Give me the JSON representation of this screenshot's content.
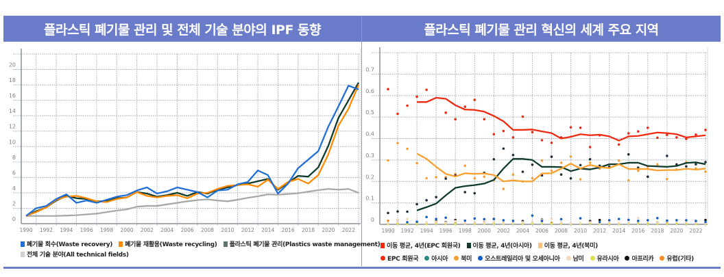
{
  "colors": {
    "header": "#6a7bc9"
  },
  "chart_data": [
    {
      "type": "line",
      "title": "플라스틱 폐기물 관리 및 전체 기술 분야의 IPF 동향",
      "x": [
        1990,
        1991,
        1992,
        1993,
        1994,
        1995,
        1996,
        1997,
        1998,
        1999,
        2000,
        2001,
        2002,
        2003,
        2004,
        2005,
        2006,
        2007,
        2008,
        2009,
        2010,
        2011,
        2012,
        2013,
        2014,
        2015,
        2016,
        2017,
        2018,
        2019,
        2020,
        2021,
        2022,
        2023
      ],
      "xticks": [
        "1990",
        "1992",
        "1994",
        "1996",
        "1998",
        "2000",
        "2002",
        "2004",
        "2006",
        "2008",
        "2010",
        "2012",
        "2014",
        "2016",
        "2018",
        "2020",
        "2022"
      ],
      "yticks": [
        "0",
        "2",
        "4",
        "6",
        "8",
        "10",
        "12",
        "14",
        "16",
        "18",
        "20"
      ],
      "ylim": [
        0,
        22
      ],
      "grid": true,
      "legend_position": "bottom",
      "series": [
        {
          "name": "폐기물 회수(Waste recovery)",
          "color": "#1f6fd6",
          "values": [
            1,
            2,
            2.3,
            3.2,
            3.8,
            2.7,
            3,
            2.7,
            3.1,
            3.5,
            3.7,
            4.3,
            4.7,
            3.9,
            4.2,
            4.7,
            4.4,
            4.1,
            3.4,
            4.3,
            4.4,
            5.1,
            5.4,
            6.9,
            6.3,
            3.9,
            5.2,
            7.2,
            8.3,
            9.4,
            12.6,
            15.2,
            17.9,
            17.4
          ]
        },
        {
          "name": "폐기물 재활용(Waste recycling)",
          "color": "#ff8a00",
          "values": [
            1,
            1.5,
            2.1,
            3.1,
            3.5,
            3.6,
            3.3,
            2.9,
            2.8,
            3.2,
            3.4,
            4.1,
            3.6,
            3.4,
            3.6,
            3.7,
            3.3,
            3.9,
            4,
            4.5,
            4.9,
            5,
            5.1,
            4.8,
            5.7,
            4.5,
            5.4,
            5.8,
            5.2,
            6.3,
            9,
            12.7,
            14.9,
            18
          ]
        },
        {
          "name": "플라스틱 폐기물 관리(Plastics waste management)",
          "color": "#0e3a2c",
          "values": [
            1,
            1.6,
            2.1,
            3,
            3.6,
            3.3,
            3.2,
            2.9,
            2.9,
            3.3,
            3.4,
            4.1,
            3.9,
            3.5,
            3.7,
            4,
            3.6,
            4.1,
            3.9,
            4.4,
            4.7,
            5,
            5.2,
            5.5,
            5.8,
            4.4,
            5.3,
            6.2,
            6.1,
            7.3,
            10.1,
            13.7,
            16,
            18.3
          ]
        },
        {
          "name": "전체 기술 분야(All technical fields)",
          "color": "#a8a8a8",
          "values": [
            1,
            1,
            1,
            1,
            1.05,
            1.1,
            1.2,
            1.3,
            1.5,
            1.7,
            1.85,
            2.2,
            2.3,
            2.3,
            2.5,
            2.7,
            2.9,
            3.05,
            3.15,
            3,
            2.9,
            3.1,
            3.35,
            3.55,
            3.8,
            3.75,
            3.85,
            3.95,
            4.15,
            4.35,
            4.5,
            4.4,
            4.5,
            4
          ]
        }
      ]
    },
    {
      "type": "line",
      "title": "플라스틱 폐기물 관리 혁신의 세계 주요 지역",
      "x": [
        1990,
        1991,
        1992,
        1993,
        1994,
        1995,
        1996,
        1997,
        1998,
        1999,
        2000,
        2001,
        2002,
        2003,
        2004,
        2005,
        2006,
        2007,
        2008,
        2009,
        2010,
        2011,
        2012,
        2013,
        2014,
        2015,
        2016,
        2017,
        2018,
        2019,
        2020,
        2021,
        2022,
        2023
      ],
      "xticks": [
        "1990",
        "1992",
        "1994",
        "1996",
        "1998",
        "2000",
        "2002",
        "2004",
        "2006",
        "2008",
        "2010",
        "2012",
        "2014",
        "2016",
        "2018",
        "2020",
        "2022"
      ],
      "yticks": [
        "0",
        "0.1",
        "0.2",
        "0.3",
        "0.4",
        "0.5",
        "0.6",
        "0.7"
      ],
      "ylim": [
        0,
        0.8
      ],
      "grid": true,
      "legend_position": "bottom",
      "moving_averages": [
        {
          "name": "이동 평균, 4년(EPC 회원국)",
          "color": "#f02a10",
          "start": 1993,
          "values": [
            0.57,
            0.57,
            0.59,
            0.585,
            0.555,
            0.535,
            0.533,
            0.525,
            0.505,
            0.48,
            0.44,
            0.44,
            0.442,
            0.433,
            0.425,
            0.4,
            0.408,
            0.42,
            0.415,
            0.418,
            0.41,
            0.39,
            0.41,
            0.412,
            0.42,
            0.428,
            0.425,
            0.42,
            0.405,
            0.41,
            0.415
          ]
        },
        {
          "name": "이동 평균, 4년(아시아)",
          "color": "#0e3a2c",
          "start": 1993,
          "values": [
            0.065,
            0.08,
            0.097,
            0.135,
            0.17,
            0.178,
            0.183,
            0.19,
            0.207,
            0.26,
            0.305,
            0.305,
            0.3,
            0.268,
            0.268,
            0.267,
            0.248,
            0.26,
            0.256,
            0.265,
            0.28,
            0.28,
            0.287,
            0.287,
            0.272,
            0.27,
            0.268,
            0.272,
            0.286,
            0.289,
            0.28
          ]
        },
        {
          "name": "이동 평균, 4년(북미)",
          "color": "#f9a030",
          "start": 1993,
          "values": [
            0.33,
            0.305,
            0.268,
            0.235,
            0.223,
            0.238,
            0.235,
            0.237,
            0.23,
            0.2,
            0.205,
            0.2,
            0.2,
            0.237,
            0.238,
            0.26,
            0.283,
            0.26,
            0.277,
            0.267,
            0.262,
            0.28,
            0.258,
            0.258,
            0.258,
            0.251,
            0.253,
            0.253,
            0.259,
            0.255,
            0.26
          ]
        }
      ],
      "scatter": [
        {
          "name": "EPC 회원국",
          "color": "#f02a10",
          "values": [
            0.63,
            0.515,
            0.553,
            0.595,
            0.627,
            null,
            0.52,
            0.49,
            0.548,
            0.58,
            0.49,
            0.42,
            0.435,
            0.405,
            0.502,
            0.43,
            0.392,
            0.38,
            0.405,
            0.452,
            0.45,
            0.36,
            0.415,
            null,
            0.372,
            0.424,
            0.433,
            0.45,
            0.404,
            0.417,
            0.405,
            0.398,
            0.418,
            0.44
          ]
        },
        {
          "name": "아시아",
          "color": "#1f2d3a",
          "values": [
            0.053,
            0.06,
            0.059,
            0.094,
            0.112,
            0.127,
            0.213,
            0.228,
            0.15,
            0.145,
            0.24,
            0.303,
            0.353,
            0.323,
            0.245,
            0.278,
            0.228,
            0.315,
            0.232,
            0.214,
            0.276,
            0.303,
            0.273,
            0.268,
            null,
            0.326,
            0.264,
            0.222,
            null,
            0.319,
            0.279,
            0.27,
            0.28,
            0.29
          ]
        },
        {
          "name": "북미",
          "color": "#f9a030",
          "values": [
            0.298,
            0.378,
            0.352,
            0.285,
            0.215,
            0.22,
            0.22,
            0.235,
            0.273,
            0.214,
            0.222,
            0.205,
            0.165,
            0.232,
            0.2,
            0.215,
            0.297,
            0.25,
            0.287,
            0.316,
            0.21,
            0.287,
            0.26,
            0.27,
            0.297,
            0.205,
            0.25,
            0.268,
            0.279,
            0.211,
            0.255,
            0.29,
            0.26,
            0.245
          ]
        },
        {
          "name": "오스트레일리아 및 오세아니아",
          "color": "#1060c8",
          "values": [
            null,
            null,
            0.01,
            0.012,
            0.034,
            0.025,
            0.031,
            null,
            0.017,
            0.027,
            0.024,
            0.025,
            0.019,
            0.016,
            null,
            0.041,
            0.016,
            null,
            0.024,
            null,
            0.028,
            null,
            0.011,
            0.019,
            0.025,
            0.021,
            0.016,
            0.019,
            0.029,
            0.017,
            0.019,
            0.019,
            0.016,
            0.011
          ]
        },
        {
          "name": "남미",
          "color": "#f5d8b8",
          "values": [
            0.005,
            0.02,
            0.025,
            0.01,
            0.01,
            0.012,
            0.008,
            0.015,
            0.005,
            0.01,
            0.008,
            0.012,
            0.006,
            0.008,
            0.01,
            0.012,
            0.02,
            0.025,
            0.01,
            0.004,
            0.006,
            0.01,
            0.008,
            0.01,
            0.006,
            0.008,
            0.03,
            0.02,
            0.01,
            0.015,
            0.02,
            0.01,
            0.008,
            0.006
          ]
        },
        {
          "name": "유라시아",
          "color": "#d8e050",
          "values": [
            0.002,
            0.003,
            0.002,
            0.003,
            0.002,
            0.004,
            0.003,
            0.002,
            0.003,
            0.002,
            0.004,
            0.003,
            0.002,
            0.003,
            0.002,
            0.004,
            0.003,
            0.002,
            0.003,
            0.002,
            0.004,
            0.003,
            0.002,
            0.003,
            0.002,
            0.004,
            0.003,
            0.002,
            0.003,
            0.002,
            0.004,
            0.003,
            0.002,
            0.003
          ]
        },
        {
          "name": "아프리카",
          "color": "#111111",
          "values": [
            null,
            0.02,
            null,
            0.01,
            null,
            0.015,
            0.01,
            0.02,
            null,
            null,
            null,
            0.025,
            null,
            null,
            0.015,
            null,
            0.022,
            null,
            null,
            null,
            null,
            0.015,
            0.02,
            null,
            null,
            null,
            null,
            null,
            0.01,
            null,
            null,
            null,
            null,
            0.02
          ]
        },
        {
          "name": "유럽(기타)",
          "color": "#f58a20",
          "values": [
            0.017,
            0.003,
            0.003,
            0.002,
            0.002,
            0.01,
            0.003,
            0.006,
            0.004,
            0.005,
            0.01,
            0.008,
            0.007,
            0.004,
            0.004,
            0.003,
            0.015,
            0.007,
            0.004,
            0.002,
            0.003,
            0.004,
            0.004,
            0.003,
            0.002,
            0.006,
            0.004,
            0.003,
            0.004,
            0.005,
            0.004,
            0.003,
            0.004,
            0.003
          ]
        }
      ]
    }
  ]
}
